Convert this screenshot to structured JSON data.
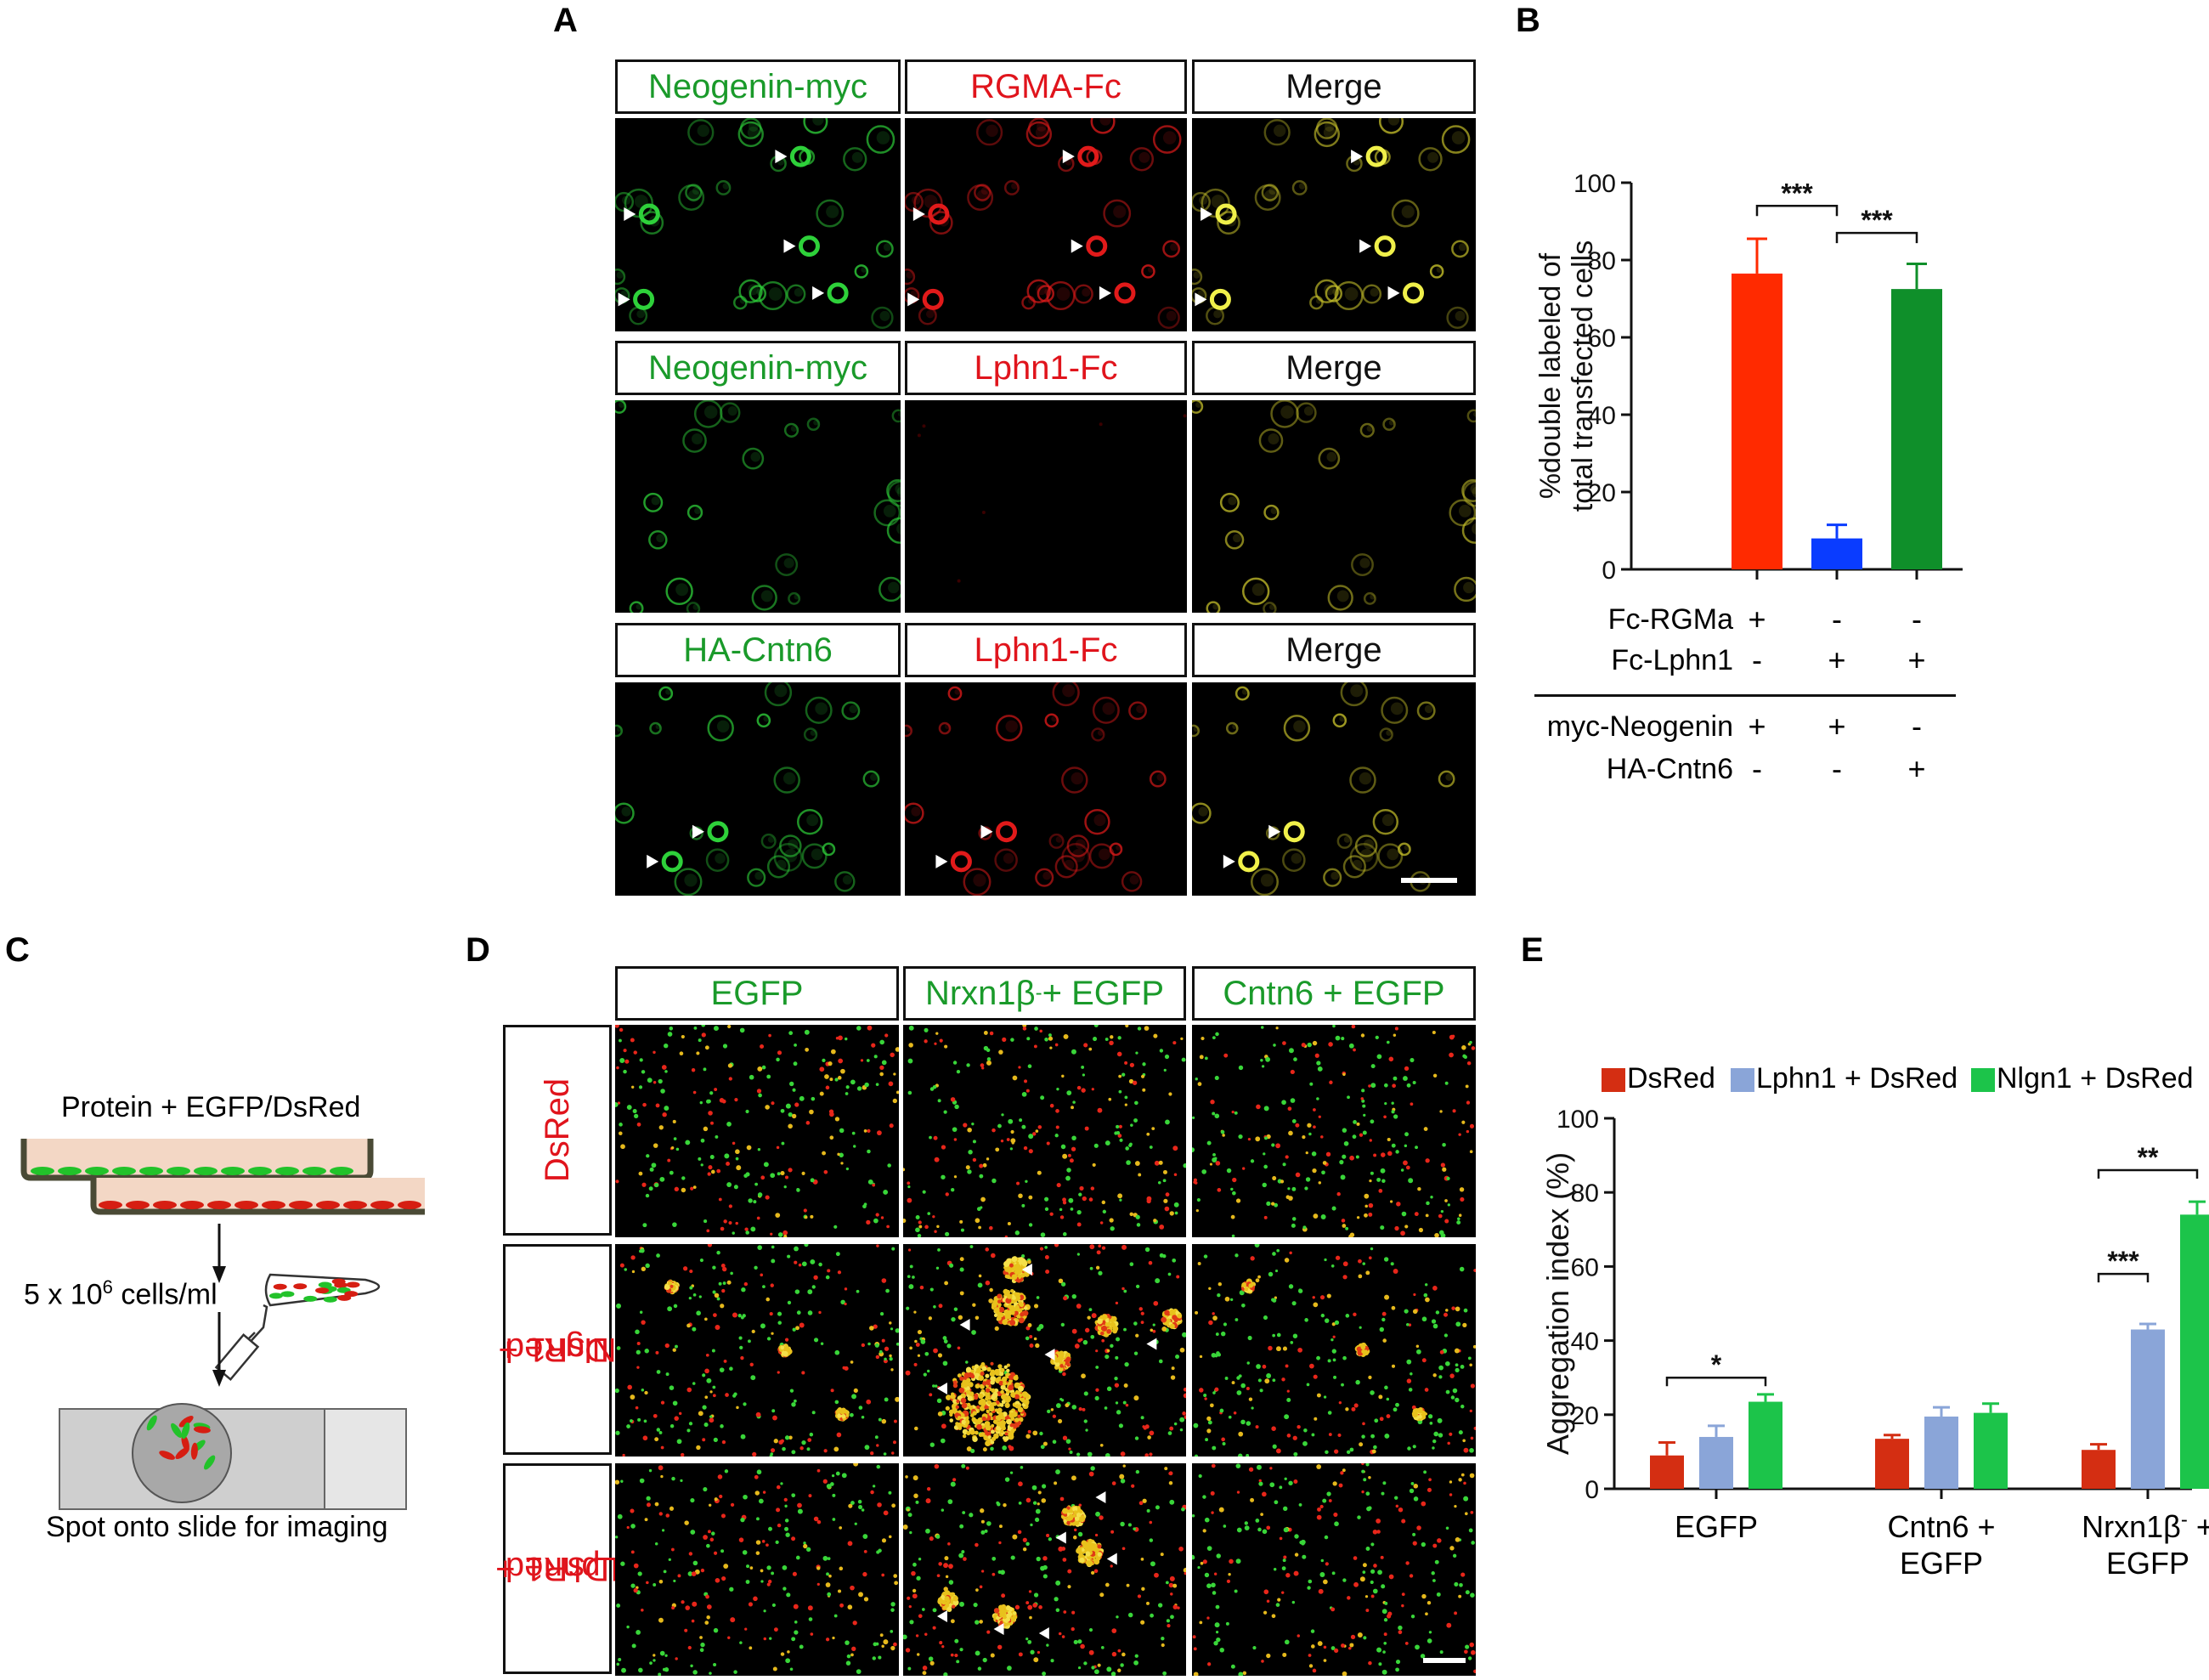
{
  "panels": {
    "A": "A",
    "B": "B",
    "C": "C",
    "D": "D",
    "E": "E"
  },
  "panel_a": {
    "rows": [
      {
        "green": "Neogenin-myc",
        "red": "RGMA-Fc",
        "merge": "Merge"
      },
      {
        "green": "Neogenin-myc",
        "red": "Lphn1-Fc",
        "merge": "Merge"
      },
      {
        "green": "HA-Cntn6",
        "red": "Lphn1-Fc",
        "merge": "Merge"
      }
    ]
  },
  "panel_b": {
    "conditions": [
      {
        "label": "Fc-RGMa",
        "signs": [
          "+",
          "-",
          "-"
        ]
      },
      {
        "label": "Fc-Lphn1",
        "signs": [
          "-",
          "+",
          "+"
        ]
      },
      {
        "label": "myc-Neogenin",
        "signs": [
          "+",
          "+",
          "-"
        ]
      },
      {
        "label": "HA-Cntn6",
        "signs": [
          "-",
          "-",
          "+"
        ]
      }
    ]
  },
  "panel_c": {
    "protein_label": "Protein + EGFP/DsRed",
    "density_base": "5 x 10",
    "density_exp": "6",
    "density_unit": " cells/ml",
    "spot_label": "Spot onto slide for imaging"
  },
  "panel_d": {
    "columns": [
      "EGFP",
      "Nrxn1β",
      "Cntn6 + EGFP"
    ],
    "col2_sup": "-",
    "col2_suffix": " + EGFP",
    "rows": [
      [
        "DsRed"
      ],
      [
        "Nlgn1 +",
        "DsRed"
      ],
      [
        "Lphn1 +",
        "DsRed"
      ]
    ]
  },
  "chart_data": [
    {
      "type": "bar",
      "categories": [
        "Fc-RGMa + myc-Neogenin",
        "Fc-Lphn1 + myc-Neogenin",
        "Fc-Lphn1 + HA-Cntn6"
      ],
      "values": [
        76.5,
        8,
        72.5
      ],
      "errors": [
        9,
        3.5,
        6.5
      ],
      "colors": [
        "#ff2a00",
        "#0a3cff",
        "#0f8f2a"
      ],
      "title": "",
      "xlabel": "",
      "ylabel": [
        "%double labeled  of",
        "total transfected cells"
      ],
      "ylim": [
        0,
        100
      ],
      "yticks": [
        0,
        20,
        40,
        60,
        80,
        100
      ],
      "significance": [
        {
          "from": 0,
          "to": 1,
          "label": "***"
        },
        {
          "from": 1,
          "to": 2,
          "label": "***"
        }
      ],
      "grid": false
    },
    {
      "type": "bar",
      "categories": [
        [
          "EGFP"
        ],
        [
          "Cntn6 +",
          "EGFP"
        ],
        [
          "Nrxn1β",
          "EGFP"
        ]
      ],
      "category3_sup": "-",
      "category3_suffix": " +",
      "series": [
        {
          "name": "DsRed",
          "color": "#d42e12",
          "values": [
            9,
            13.5,
            10.5
          ],
          "errors": [
            3.5,
            1,
            1.5
          ]
        },
        {
          "name": "Lphn1 + DsRed",
          "color": "#8aa5d8",
          "values": [
            14,
            19.5,
            43
          ],
          "errors": [
            3,
            2.5,
            1.5
          ]
        },
        {
          "name": "Nlgn1 + DsRed",
          "color": "#1cc44a",
          "values": [
            23.5,
            20.5,
            74
          ],
          "errors": [
            2,
            2.5,
            3.5
          ]
        }
      ],
      "title": "",
      "xlabel": "",
      "ylabel": "Aggregation index (%)",
      "ylim": [
        0,
        100
      ],
      "yticks": [
        0,
        20,
        40,
        60,
        80,
        100
      ],
      "legend_position": "top",
      "significance": [
        {
          "group": 0,
          "from": 0,
          "to": 2,
          "label": "*"
        },
        {
          "group": 2,
          "from": 0,
          "to": 1,
          "label": "***"
        },
        {
          "group": 2,
          "from": 0,
          "to": 2,
          "label": "**"
        }
      ],
      "grid": false
    }
  ]
}
